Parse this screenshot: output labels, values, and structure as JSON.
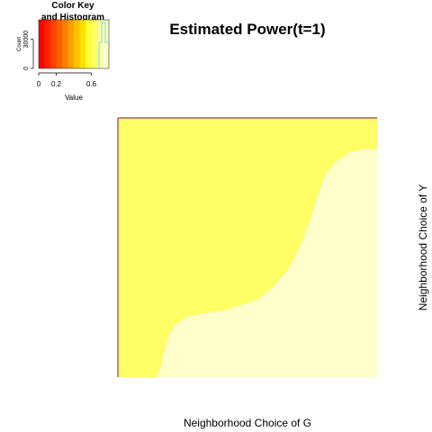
{
  "chart_data": {
    "type": "heatmap",
    "title": "Estimated Power(t=1)",
    "xlabel": "Neighborhood Choice of G",
    "ylabel": "Neighborhood Choice of Y",
    "colors": {
      "low_region": "#FFFF66",
      "high_region": "#FFFFCC",
      "border": "#B03060",
      "key_gradient": [
        "#FF0000",
        "#FF2000",
        "#FF4000",
        "#FF6000",
        "#FF8000",
        "#FFA000",
        "#FFC000",
        "#FFE000",
        "#FFFF33",
        "#FFFF66",
        "#FFFFAA",
        "#FFFFCC"
      ],
      "histogram_line": "#7FD4C8"
    },
    "color_key": {
      "title_line1": "Color Key",
      "title_line2": "and Histogram",
      "xlabel": "Value",
      "ylabel": "Count",
      "x_ticks": [
        "0",
        "0.2",
        "0.6"
      ],
      "x_tick_values": [
        0,
        0.2,
        0.6
      ],
      "x_range": [
        0,
        0.8
      ],
      "y_ticks": [
        "0",
        "30000"
      ],
      "y_tick_values": [
        0,
        30000
      ],
      "y_range": [
        0,
        50000
      ]
    },
    "regions": [
      {
        "name": "low",
        "color": "#FFFF66"
      },
      {
        "name": "high",
        "color": "#FFFFCC"
      }
    ],
    "boundary": [
      [
        0.15,
        0.0
      ],
      [
        0.16,
        0.02
      ],
      [
        0.17,
        0.06
      ],
      [
        0.18,
        0.1
      ],
      [
        0.19,
        0.14
      ],
      [
        0.2,
        0.17
      ],
      [
        0.22,
        0.2
      ],
      [
        0.26,
        0.23
      ],
      [
        0.3,
        0.24
      ],
      [
        0.36,
        0.25
      ],
      [
        0.42,
        0.26
      ],
      [
        0.48,
        0.28
      ],
      [
        0.54,
        0.3
      ],
      [
        0.6,
        0.35
      ],
      [
        0.66,
        0.42
      ],
      [
        0.7,
        0.5
      ],
      [
        0.74,
        0.6
      ],
      [
        0.77,
        0.7
      ],
      [
        0.8,
        0.78
      ],
      [
        0.84,
        0.83
      ],
      [
        0.9,
        0.87
      ],
      [
        0.96,
        0.88
      ],
      [
        1.0,
        0.88
      ]
    ]
  }
}
